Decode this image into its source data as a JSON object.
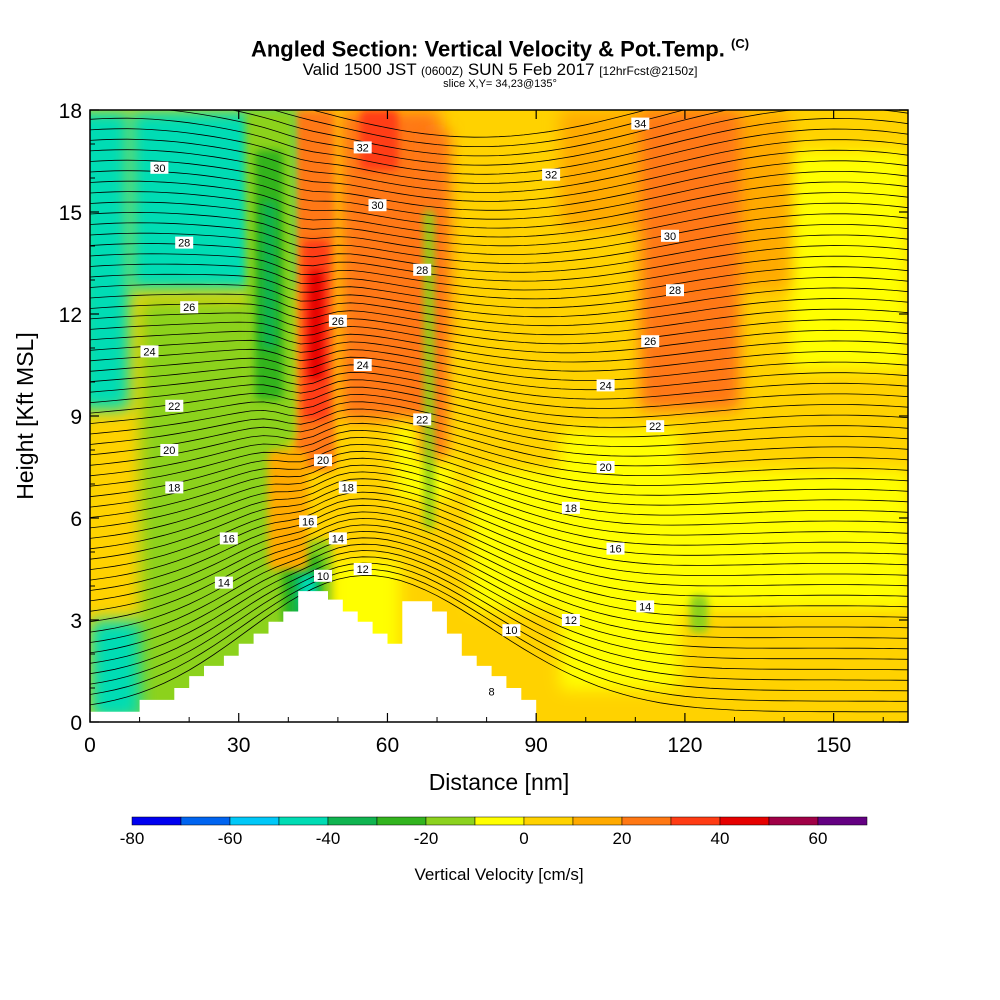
{
  "header": {
    "title_main": "Angled Section: Vertical Velocity & Pot.Temp.",
    "title_suffix": "(C)",
    "valid_prefix": "Valid 1500 JST",
    "valid_utc": "(0600Z)",
    "valid_date": "SUN 5 Feb 2017",
    "forecast": "[12hrFcst@2150z]",
    "slice": "slice X,Y= 34,23@135°"
  },
  "chart_data": {
    "type": "heatmap",
    "xlabel": "Distance [nm]",
    "ylabel": "Height [Kft MSL]",
    "xlim": [
      0,
      165
    ],
    "ylim": [
      0,
      18
    ],
    "x_ticks": [
      0,
      30,
      60,
      90,
      120,
      150
    ],
    "x_tick_labels": [
      "0",
      "30",
      "60",
      "90",
      "120",
      "150"
    ],
    "y_ticks": [
      0,
      3,
      6,
      9,
      12,
      15,
      18
    ],
    "y_tick_labels": [
      "0",
      "3",
      "6",
      "9",
      "12",
      "15",
      "18"
    ],
    "colorbar": {
      "label": "Vertical Velocity [cm/s]",
      "bounds": [
        -80,
        70
      ],
      "step": 10,
      "tick_values": [
        -80,
        -60,
        -40,
        -20,
        0,
        20,
        40,
        60
      ],
      "tick_labels": [
        "-80",
        "-60",
        "-40",
        "-20",
        "0",
        "20",
        "40",
        "60"
      ],
      "colors": [
        "#0000f0",
        "#0064f0",
        "#00c8f8",
        "#00dcb4",
        "#10b450",
        "#32b41e",
        "#8cd21e",
        "#ffff00",
        "#ffd200",
        "#ffaa00",
        "#ff7814",
        "#ff3c14",
        "#e60000",
        "#a00046",
        "#640082"
      ]
    },
    "terrain_kft": [
      [
        0,
        0.3
      ],
      [
        10,
        0.3
      ],
      [
        10,
        0.65
      ],
      [
        17,
        0.65
      ],
      [
        17,
        1.0
      ],
      [
        20,
        1.0
      ],
      [
        20,
        1.35
      ],
      [
        23,
        1.35
      ],
      [
        23,
        1.65
      ],
      [
        27,
        1.65
      ],
      [
        27,
        1.95
      ],
      [
        30,
        1.95
      ],
      [
        30,
        2.3
      ],
      [
        33,
        2.3
      ],
      [
        33,
        2.6
      ],
      [
        36,
        2.6
      ],
      [
        36,
        2.95
      ],
      [
        39,
        2.95
      ],
      [
        39,
        3.25
      ],
      [
        42,
        3.25
      ],
      [
        42,
        3.85
      ],
      [
        48,
        3.85
      ],
      [
        48,
        3.6
      ],
      [
        51,
        3.6
      ],
      [
        51,
        3.25
      ],
      [
        54,
        3.25
      ],
      [
        54,
        2.95
      ],
      [
        57,
        2.95
      ],
      [
        57,
        2.6
      ],
      [
        60,
        2.6
      ],
      [
        60,
        2.3
      ],
      [
        63,
        2.3
      ],
      [
        63,
        3.55
      ],
      [
        69,
        3.55
      ],
      [
        69,
        3.25
      ],
      [
        72,
        3.25
      ],
      [
        72,
        2.6
      ],
      [
        75,
        2.6
      ],
      [
        75,
        1.95
      ],
      [
        78,
        1.95
      ],
      [
        78,
        1.65
      ],
      [
        81,
        1.65
      ],
      [
        81,
        1.35
      ],
      [
        84,
        1.35
      ],
      [
        84,
        1.0
      ],
      [
        87,
        1.0
      ],
      [
        87,
        0.65
      ],
      [
        90,
        0.65
      ],
      [
        90,
        0
      ]
    ],
    "theta_labels": [
      {
        "text": "34",
        "x": 111,
        "y": 17.6
      },
      {
        "text": "32",
        "x": 55,
        "y": 16.9
      },
      {
        "text": "32",
        "x": 93,
        "y": 16.1
      },
      {
        "text": "30",
        "x": 14,
        "y": 16.3
      },
      {
        "text": "30",
        "x": 58,
        "y": 15.2
      },
      {
        "text": "30",
        "x": 117,
        "y": 14.3
      },
      {
        "text": "28",
        "x": 19,
        "y": 14.1
      },
      {
        "text": "28",
        "x": 67,
        "y": 13.3
      },
      {
        "text": "28",
        "x": 118,
        "y": 12.7
      },
      {
        "text": "26",
        "x": 20,
        "y": 12.2
      },
      {
        "text": "26",
        "x": 50,
        "y": 11.8
      },
      {
        "text": "26",
        "x": 113,
        "y": 11.2
      },
      {
        "text": "24",
        "x": 12,
        "y": 10.9
      },
      {
        "text": "24",
        "x": 55,
        "y": 10.5
      },
      {
        "text": "24",
        "x": 104,
        "y": 9.9
      },
      {
        "text": "22",
        "x": 17,
        "y": 9.3
      },
      {
        "text": "22",
        "x": 67,
        "y": 8.9
      },
      {
        "text": "22",
        "x": 114,
        "y": 8.7
      },
      {
        "text": "20",
        "x": 16,
        "y": 8.0
      },
      {
        "text": "20",
        "x": 47,
        "y": 7.7
      },
      {
        "text": "20",
        "x": 104,
        "y": 7.5
      },
      {
        "text": "18",
        "x": 17,
        "y": 6.9
      },
      {
        "text": "18",
        "x": 52,
        "y": 6.9
      },
      {
        "text": "18",
        "x": 97,
        "y": 6.3
      },
      {
        "text": "16",
        "x": 28,
        "y": 5.4
      },
      {
        "text": "16",
        "x": 44,
        "y": 5.9
      },
      {
        "text": "16",
        "x": 106,
        "y": 5.1
      },
      {
        "text": "14",
        "x": 27,
        "y": 4.1
      },
      {
        "text": "14",
        "x": 50,
        "y": 5.4
      },
      {
        "text": "14",
        "x": 112,
        "y": 3.4
      },
      {
        "text": "12",
        "x": 55,
        "y": 4.5
      },
      {
        "text": "12",
        "x": 97,
        "y": 3.0
      },
      {
        "text": "10",
        "x": 47,
        "y": 4.3
      },
      {
        "text": "10",
        "x": 85,
        "y": 2.7
      },
      {
        "text": "8",
        "x": 81,
        "y": 0.9
      }
    ]
  }
}
